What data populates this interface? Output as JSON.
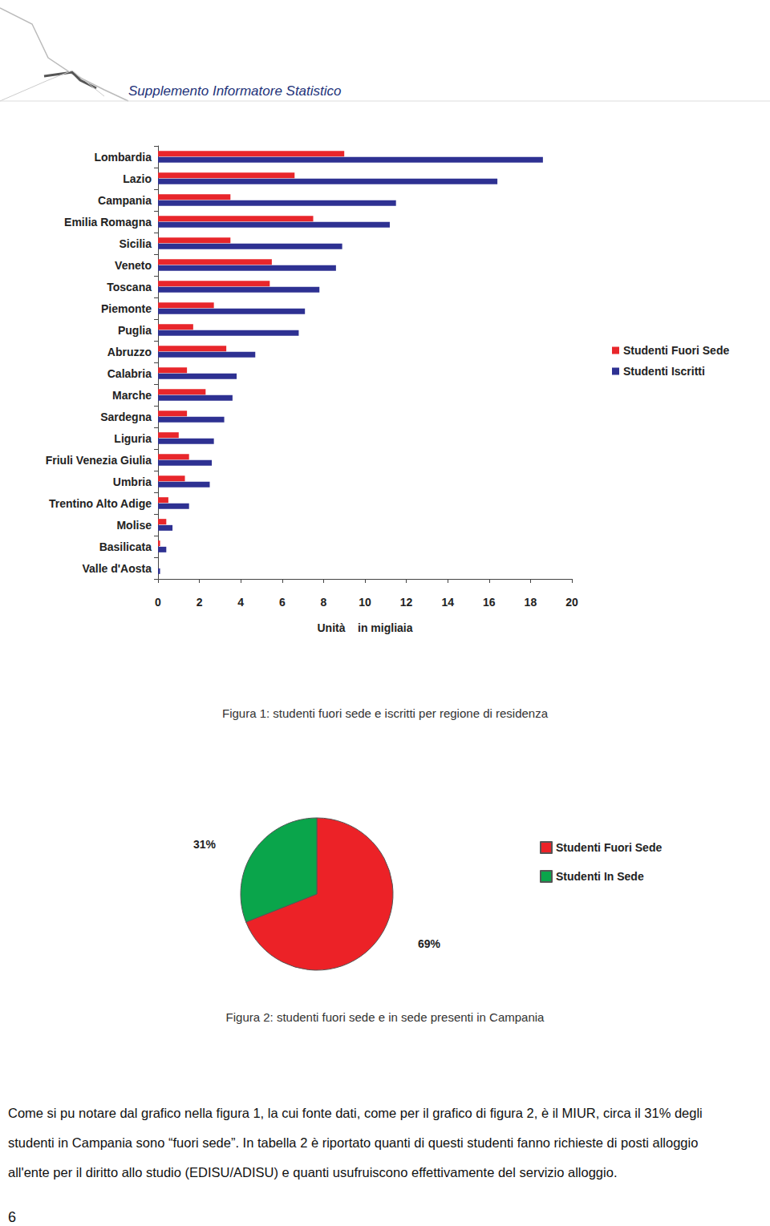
{
  "header": {
    "title": "Supplemento Informatore Statistico"
  },
  "chart_data": [
    {
      "type": "bar",
      "orientation": "horizontal",
      "title": "Figura 1: studenti fuori sede e iscritti per regione di residenza",
      "categories": [
        "Lombardia",
        "Lazio",
        "Campania",
        "Emilia Romagna",
        "Sicilia",
        "Veneto",
        "Toscana",
        "Piemonte",
        "Puglia",
        "Abruzzo",
        "Calabria",
        "Marche",
        "Sardegna",
        "Liguria",
        "Friuli Venezia Giulia",
        "Umbria",
        "Trentino Alto Adige",
        "Molise",
        "Basilicata",
        "Valle d'Aosta"
      ],
      "series": [
        {
          "name": "Studenti Fuori Sede",
          "color": "#e8262b",
          "values": [
            9.0,
            6.6,
            3.5,
            7.5,
            3.5,
            5.5,
            5.4,
            2.7,
            1.7,
            3.3,
            1.4,
            2.3,
            1.4,
            1.0,
            1.5,
            1.3,
            0.5,
            0.4,
            0.1,
            0
          ]
        },
        {
          "name": "Studenti Iscritti",
          "color": "#2e3192",
          "values": [
            18.6,
            16.4,
            11.5,
            11.2,
            8.9,
            8.6,
            7.8,
            7.1,
            6.8,
            4.7,
            3.8,
            3.6,
            3.2,
            2.7,
            2.6,
            2.5,
            1.5,
            0.7,
            0.4,
            0.1
          ]
        }
      ],
      "xlim": [
        0,
        20
      ],
      "xticks": [
        0,
        2,
        4,
        6,
        8,
        10,
        12,
        14,
        16,
        18,
        20
      ],
      "x_label": "Unità    in migliaia",
      "grid": false,
      "legend": "right"
    },
    {
      "type": "pie",
      "title": "Figura 2: studenti fuori sede e in sede presenti in Campania",
      "categories": [
        "Studenti Fuori Sede",
        "Studenti In Sede"
      ],
      "values": [
        69,
        31
      ],
      "value_labels": [
        "69%",
        "31%"
      ],
      "colors": [
        "#ec2227",
        "#0aa54b"
      ],
      "data_labels": true,
      "legend": "right"
    }
  ],
  "body": {
    "lines": [
      "Come si pu  notare dal grafico nella figura 1, la cui fonte dati, come per il grafico di figura 2, è il MIUR, circa il 31% degli",
      "studenti in Campania sono “fuori sede”. In tabella 2 è riportato quanti di questi studenti fanno richieste di posti alloggio",
      "all'ente per il diritto allo studio (EDISU/ADISU) e quanti usufruiscono effettivamente del servizio alloggio."
    ]
  },
  "page_number": 6
}
